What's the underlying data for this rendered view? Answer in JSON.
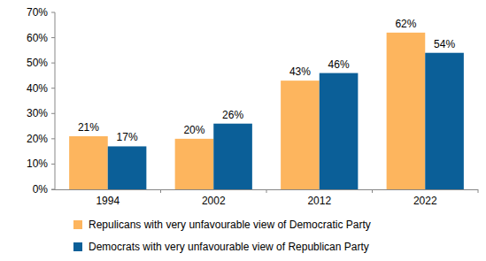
{
  "chart_data": {
    "type": "bar",
    "categories": [
      "1994",
      "2002",
      "2012",
      "2022"
    ],
    "series": [
      {
        "name": "Repulicans with very unfavourable view of Democratic Party",
        "color": "#fdb55e",
        "values": [
          21,
          20,
          43,
          62
        ],
        "value_labels": [
          "21%",
          "20%",
          "43%",
          "62%"
        ]
      },
      {
        "name": "Democrats with very unfavourable view of Republican Party",
        "color": "#0b5f98",
        "values": [
          17,
          26,
          46,
          54
        ],
        "value_labels": [
          "17%",
          "26%",
          "46%",
          "54%"
        ]
      }
    ],
    "ylim": [
      0,
      70
    ],
    "yticks": [
      {
        "value": 0,
        "label": "0%"
      },
      {
        "value": 10,
        "label": "10%"
      },
      {
        "value": 20,
        "label": "20%"
      },
      {
        "value": 30,
        "label": "30%"
      },
      {
        "value": 40,
        "label": "40%"
      },
      {
        "value": 50,
        "label": "50%"
      },
      {
        "value": 60,
        "label": "60%"
      },
      {
        "value": 70,
        "label": "70%"
      }
    ],
    "grid": false,
    "data_labels": true,
    "legend": "bottom"
  }
}
